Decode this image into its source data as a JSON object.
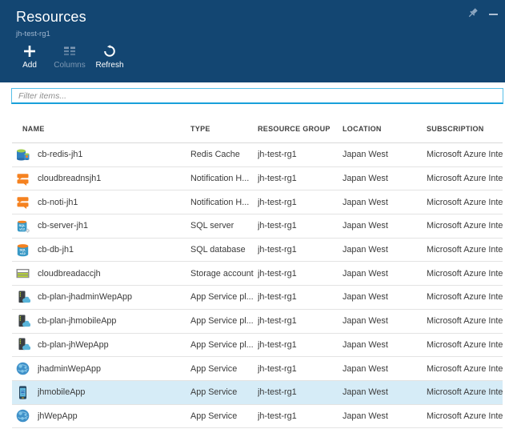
{
  "header": {
    "title": "Resources",
    "subtitle": "jh-test-rg1"
  },
  "window_controls": {
    "pin_icon": "pin-icon",
    "minimize_icon": "minimize-icon"
  },
  "toolbar": {
    "add_label": "Add",
    "columns_label": "Columns",
    "refresh_label": "Refresh"
  },
  "filter": {
    "placeholder": "Filter items..."
  },
  "table": {
    "columns": [
      "NAME",
      "TYPE",
      "RESOURCE GROUP",
      "LOCATION",
      "SUBSCRIPTION"
    ],
    "rows": [
      {
        "icon": "redis-cache",
        "name": "cb-redis-jh1",
        "type": "Redis Cache",
        "resource_group": "jh-test-rg1",
        "location": "Japan West",
        "subscription": "Microsoft Azure Inte...",
        "selected": false
      },
      {
        "icon": "notification-hub",
        "name": "cloudbreadnsjh1",
        "type": "Notification H...",
        "resource_group": "jh-test-rg1",
        "location": "Japan West",
        "subscription": "Microsoft Azure Inte...",
        "selected": false
      },
      {
        "icon": "notification-hub",
        "name": "cb-noti-jh1",
        "type": "Notification H...",
        "resource_group": "jh-test-rg1",
        "location": "Japan West",
        "subscription": "Microsoft Azure Inte...",
        "selected": false
      },
      {
        "icon": "sql-server",
        "name": "cb-server-jh1",
        "type": "SQL server",
        "resource_group": "jh-test-rg1",
        "location": "Japan West",
        "subscription": "Microsoft Azure Inte...",
        "selected": false
      },
      {
        "icon": "sql-database",
        "name": "cb-db-jh1",
        "type": "SQL database",
        "resource_group": "jh-test-rg1",
        "location": "Japan West",
        "subscription": "Microsoft Azure Inte...",
        "selected": false
      },
      {
        "icon": "storage-account",
        "name": "cloudbreadaccjh",
        "type": "Storage account",
        "resource_group": "jh-test-rg1",
        "location": "Japan West",
        "subscription": "Microsoft Azure Inte...",
        "selected": false
      },
      {
        "icon": "app-service-plan",
        "name": "cb-plan-jhadminWepApp",
        "type": "App Service pl...",
        "resource_group": "jh-test-rg1",
        "location": "Japan West",
        "subscription": "Microsoft Azure Inte...",
        "selected": false
      },
      {
        "icon": "app-service-plan",
        "name": "cb-plan-jhmobileApp",
        "type": "App Service pl...",
        "resource_group": "jh-test-rg1",
        "location": "Japan West",
        "subscription": "Microsoft Azure Inte...",
        "selected": false
      },
      {
        "icon": "app-service-plan",
        "name": "cb-plan-jhWepApp",
        "type": "App Service pl...",
        "resource_group": "jh-test-rg1",
        "location": "Japan West",
        "subscription": "Microsoft Azure Inte...",
        "selected": false
      },
      {
        "icon": "web-app",
        "name": "jhadminWepApp",
        "type": "App Service",
        "resource_group": "jh-test-rg1",
        "location": "Japan West",
        "subscription": "Microsoft Azure Inte...",
        "selected": false
      },
      {
        "icon": "mobile-app",
        "name": "jhmobileApp",
        "type": "App Service",
        "resource_group": "jh-test-rg1",
        "location": "Japan West",
        "subscription": "Microsoft Azure Inte...",
        "selected": true
      },
      {
        "icon": "web-app",
        "name": "jhWepApp",
        "type": "App Service",
        "resource_group": "jh-test-rg1",
        "location": "Japan West",
        "subscription": "Microsoft Azure Inte...",
        "selected": false
      }
    ]
  },
  "colors": {
    "header_bg": "#134672",
    "accent_cyan": "#18a0da",
    "selected_row_bg": "#d6ecf7",
    "notification_orange": "#f58220",
    "sql_blue": "#3999c6",
    "storage_green": "#b8d432"
  }
}
